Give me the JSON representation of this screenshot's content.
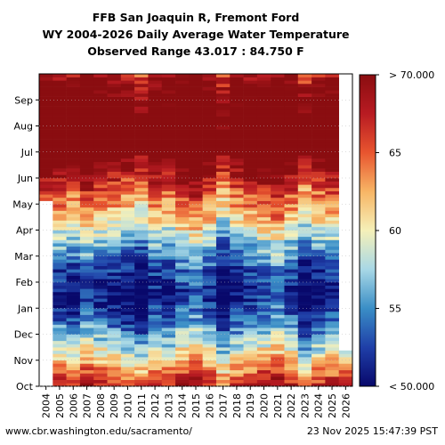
{
  "chart_data": {
    "type": "heatmap",
    "title": [
      "FFB San Joaquin R, Fremont Ford",
      "WY 2004-2026 Daily Average Water Temperature",
      "Observed Range 43.017 : 84.750 F"
    ],
    "x_tick_labels": [
      "2004",
      "2005",
      "2006",
      "2007",
      "2008",
      "2009",
      "2010",
      "2011",
      "2012",
      "2013",
      "2014",
      "2015",
      "2016",
      "2017",
      "2018",
      "2019",
      "2020",
      "2021",
      "2022",
      "2023",
      "2024",
      "2025",
      "2026"
    ],
    "y_tick_labels": [
      "Oct",
      "Nov",
      "Dec",
      "Jan",
      "Feb",
      "Mar",
      "Apr",
      "May",
      "Jun",
      "Jul",
      "Aug",
      "Sep"
    ],
    "colorbar": {
      "min": 50,
      "max": 70,
      "units": "F",
      "labels": [
        "< 50.000",
        "55",
        "60",
        "65",
        "> 70.000"
      ],
      "colors": [
        "#08086b",
        "#1f3fa8",
        "#3a8ec6",
        "#a8d8e6",
        "#f5f0b8",
        "#f7b565",
        "#e8552f",
        "#b81b22",
        "#8a0d10"
      ]
    },
    "monthly_typical_temp_F": [
      64,
      58,
      53,
      50,
      52,
      56,
      61,
      65,
      70,
      74,
      73,
      70
    ],
    "year_offsets_F": [
      1,
      1,
      0,
      2,
      1,
      0,
      -1,
      -2,
      1,
      0,
      2,
      3,
      1,
      -2,
      0,
      1,
      2,
      3,
      1,
      -2,
      0,
      1,
      0
    ],
    "data_coverage": {
      "2004": "starts in early May",
      "2026": "Oct and early Nov only"
    }
  },
  "footer": {
    "left": "www.cbr.washington.edu/sacramento/",
    "right": "23 Nov 2025 15:47:39 PST"
  }
}
